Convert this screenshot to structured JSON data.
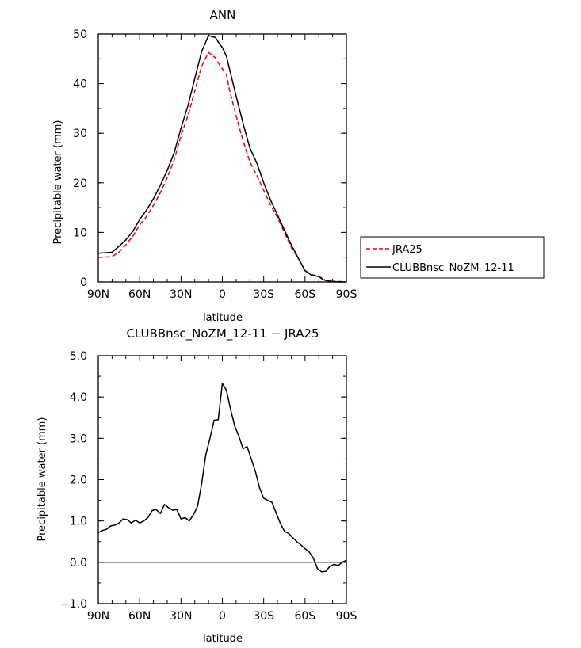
{
  "chart_data": [
    {
      "type": "line",
      "title": "ANN",
      "xlabel": "latitude",
      "ylabel": "Precipitable water (mm)",
      "xlim": [
        90,
        -90
      ],
      "ylim": [
        0,
        50
      ],
      "x_tick_values": [
        90,
        60,
        30,
        0,
        -30,
        -60,
        -90
      ],
      "x_tick_labels": [
        "90N",
        "60N",
        "30N",
        "0",
        "30S",
        "60S",
        "90S"
      ],
      "y_tick_values": [
        0,
        10,
        20,
        30,
        40,
        50
      ],
      "y_tick_labels": [
        "0",
        "10",
        "20",
        "30",
        "40",
        "50"
      ],
      "legend_position": "right",
      "series": [
        {
          "name": "JRA25",
          "color": "#e8000b",
          "dash": "dashed",
          "x": [
            90,
            85,
            80,
            75,
            70,
            65,
            60,
            55,
            50,
            45,
            40,
            35,
            30,
            25,
            20,
            15,
            10,
            5,
            2,
            0,
            -3,
            -5,
            -10,
            -15,
            -20,
            -25,
            -30,
            -35,
            -40,
            -45,
            -50,
            -55,
            -60,
            -65,
            -70,
            -73,
            -75,
            -80,
            -85,
            -90
          ],
          "y": [
            5.0,
            5.0,
            5.1,
            6.0,
            7.5,
            9.2,
            11.5,
            13.2,
            15.5,
            18.0,
            21.0,
            24.5,
            29.5,
            33.5,
            38.5,
            43.5,
            46.3,
            45.2,
            43.8,
            43.0,
            41.8,
            39.0,
            33.5,
            28.5,
            24.2,
            21.5,
            18.5,
            15.5,
            13.0,
            10.0,
            7.0,
            4.8,
            2.3,
            1.5,
            1.2,
            0.6,
            0.3,
            0.1,
            0.1,
            0.0
          ]
        },
        {
          "name": "CLUBBnsc_NoZM_12-11",
          "color": "#000000",
          "dash": "solid",
          "x": [
            90,
            85,
            80,
            75,
            70,
            65,
            60,
            55,
            50,
            45,
            40,
            35,
            30,
            25,
            20,
            15,
            10,
            5,
            2,
            0,
            -3,
            -5,
            -10,
            -15,
            -20,
            -25,
            -30,
            -35,
            -40,
            -45,
            -50,
            -55,
            -60,
            -65,
            -70,
            -73,
            -75,
            -80,
            -85,
            -90
          ],
          "y": [
            5.8,
            5.9,
            6.0,
            7.2,
            8.5,
            10.2,
            12.6,
            14.5,
            16.8,
            19.5,
            22.5,
            26.0,
            31.0,
            35.5,
            41.0,
            46.5,
            49.7,
            49.3,
            48.0,
            47.3,
            45.5,
            43.2,
            37.5,
            32.0,
            27.0,
            24.0,
            20.0,
            16.5,
            13.5,
            10.5,
            7.5,
            4.9,
            2.3,
            1.3,
            1.1,
            0.5,
            0.3,
            0.1,
            0.0,
            0.0
          ]
        }
      ]
    },
    {
      "type": "line",
      "title": "CLUBBnsc_NoZM_12-11 − JRA25",
      "xlabel": "latitude",
      "ylabel": "Precipitable water (mm)",
      "xlim": [
        90,
        -90
      ],
      "ylim": [
        -1.0,
        5.0
      ],
      "x_tick_values": [
        90,
        60,
        30,
        0,
        -30,
        -60,
        -90
      ],
      "x_tick_labels": [
        "90N",
        "60N",
        "30N",
        "0",
        "30S",
        "60S",
        "90S"
      ],
      "y_tick_values": [
        -1.0,
        0.0,
        1.0,
        2.0,
        3.0,
        4.0,
        5.0
      ],
      "y_tick_labels": [
        "−1.0",
        "0.0",
        "1.0",
        "2.0",
        "3.0",
        "4.0",
        "5.0"
      ],
      "series": [
        {
          "color": "#000000",
          "dash": "solid",
          "x": [
            90,
            87,
            84,
            81,
            78,
            75,
            72,
            69,
            66,
            63,
            60,
            57,
            54,
            51,
            48,
            45,
            42,
            39,
            36,
            33,
            30,
            27,
            24,
            21,
            18,
            15,
            12,
            9,
            6,
            3,
            0,
            -3,
            -6,
            -9,
            -12,
            -15,
            -18,
            -21,
            -24,
            -27,
            -30,
            -33,
            -36,
            -39,
            -42,
            -45,
            -48,
            -51,
            -54,
            -57,
            -60,
            -63,
            -66,
            -69,
            -72,
            -75,
            -78,
            -81,
            -84,
            -87,
            -90
          ],
          "y": [
            0.72,
            0.77,
            0.8,
            0.88,
            0.9,
            0.95,
            1.05,
            1.03,
            0.95,
            1.02,
            0.95,
            1.0,
            1.08,
            1.25,
            1.28,
            1.18,
            1.4,
            1.32,
            1.26,
            1.28,
            1.05,
            1.08,
            1.0,
            1.15,
            1.35,
            1.9,
            2.6,
            3.0,
            3.44,
            3.45,
            4.33,
            4.16,
            3.7,
            3.3,
            3.05,
            2.75,
            2.8,
            2.5,
            2.2,
            1.8,
            1.55,
            1.5,
            1.45,
            1.2,
            0.95,
            0.75,
            0.7,
            0.6,
            0.5,
            0.42,
            0.33,
            0.25,
            0.1,
            -0.15,
            -0.23,
            -0.22,
            -0.1,
            -0.05,
            -0.08,
            0.0,
            0.05
          ]
        }
      ]
    }
  ]
}
